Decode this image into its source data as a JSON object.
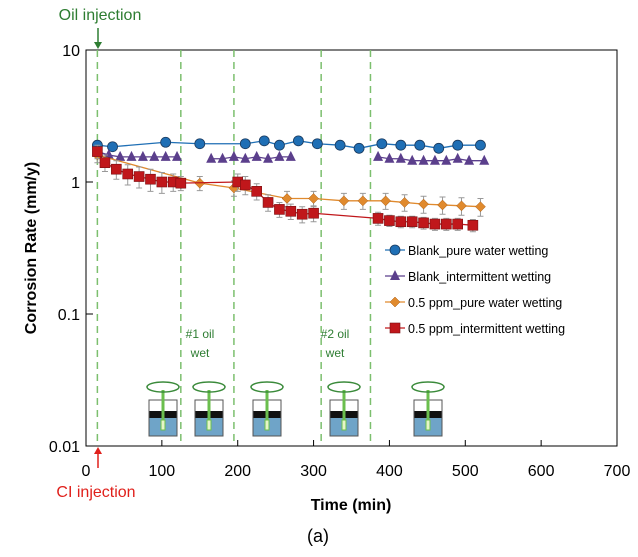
{
  "chart_data": {
    "type": "scatter",
    "xlabel": "Time (min)",
    "ylabel": "Corrosion Rate (mm/y)",
    "caption": "(a)",
    "xlim": [
      0,
      700
    ],
    "xticks": [
      0,
      100,
      200,
      300,
      400,
      500,
      600,
      700
    ],
    "ylim": [
      0.01,
      10
    ],
    "yticks": [
      0.01,
      0.1,
      1,
      10
    ],
    "log_y": true,
    "legend": "right",
    "vlines": [
      15,
      125,
      195,
      310,
      375
    ],
    "vline_color": "#7cbf6e",
    "annotations": {
      "oil_injection": "Oil injection",
      "ci_injection": "CI injection",
      "oil_wet_1": [
        "#1 oil",
        "wet"
      ],
      "oil_wet_2": [
        "#2 oil",
        "wet"
      ]
    },
    "series": [
      {
        "name": "Blank_pure water wetting",
        "color": "#1f6fb5",
        "marker": "circle",
        "x": [
          15,
          35,
          105,
          150,
          210,
          235,
          255,
          280,
          305,
          335,
          360,
          390,
          415,
          440,
          465,
          490,
          520
        ],
        "values": [
          1.9,
          1.85,
          2.0,
          1.95,
          1.95,
          2.05,
          1.9,
          2.05,
          1.95,
          1.9,
          1.8,
          1.95,
          1.9,
          1.9,
          1.8,
          1.9,
          1.9
        ]
      },
      {
        "name": "Blank_intermittent wetting",
        "color": "#5b3f8c",
        "marker": "triangle",
        "x": [
          15,
          30,
          45,
          60,
          75,
          90,
          105,
          120,
          140,
          165,
          180,
          195,
          210,
          225,
          240,
          255,
          270,
          330,
          385,
          400,
          415,
          430,
          445,
          460,
          475,
          490,
          505,
          525
        ],
        "values": [
          1.7,
          1.6,
          1.55,
          1.55,
          1.55,
          1.55,
          1.55,
          1.55,
          null,
          1.5,
          1.5,
          1.55,
          1.5,
          1.55,
          1.5,
          1.55,
          1.55,
          null,
          1.55,
          1.5,
          1.5,
          1.45,
          1.45,
          1.45,
          1.45,
          1.5,
          1.45,
          1.45
        ]
      },
      {
        "name": "0.5 ppm_pure water wetting",
        "color": "#e08a2e",
        "marker": "diamond",
        "x": [
          15,
          150,
          195,
          265,
          300,
          340,
          365,
          395,
          420,
          445,
          470,
          495,
          520
        ],
        "values": [
          1.6,
          0.98,
          0.9,
          0.75,
          0.75,
          0.72,
          0.72,
          0.72,
          0.7,
          0.68,
          0.67,
          0.66,
          0.65
        ],
        "errors": [
          0.2,
          0.12,
          0.12,
          0.1,
          0.1,
          0.1,
          0.1,
          0.1,
          0.1,
          0.1,
          0.1,
          0.1,
          0.1
        ]
      },
      {
        "name": "0.5 ppm_intermittent wetting",
        "color": "#c0171b",
        "marker": "square",
        "x": [
          15,
          25,
          40,
          55,
          70,
          85,
          100,
          115,
          125,
          200,
          210,
          225,
          240,
          255,
          270,
          285,
          300,
          385,
          400,
          415,
          430,
          445,
          460,
          475,
          490,
          510
        ],
        "values": [
          1.7,
          1.4,
          1.25,
          1.15,
          1.1,
          1.05,
          1.0,
          1.0,
          0.98,
          1.0,
          0.95,
          0.85,
          0.7,
          0.62,
          0.6,
          0.57,
          0.58,
          0.53,
          0.51,
          0.5,
          0.5,
          0.49,
          0.48,
          0.48,
          0.48,
          0.47
        ],
        "errors": [
          0.2,
          0.2,
          0.2,
          0.2,
          0.2,
          0.2,
          0.18,
          0.15,
          0.12,
          0.15,
          0.15,
          0.12,
          0.1,
          0.08,
          0.08,
          0.08,
          0.08,
          0.06,
          0.05,
          0.05,
          0.05,
          0.05,
          0.05,
          0.05,
          0.05,
          0.05
        ]
      }
    ]
  }
}
